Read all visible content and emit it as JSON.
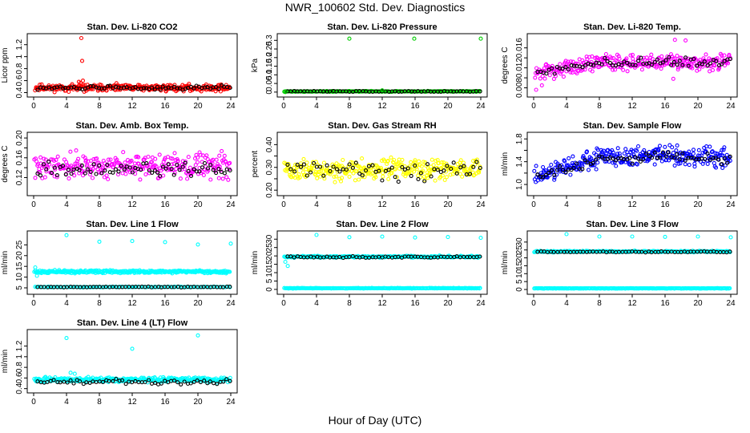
{
  "figure": {
    "title": "NWR_100602  Std. Dev. Diagnostics",
    "xlabel": "Hour of Day (UTC)"
  },
  "chart_data": [
    {
      "type": "scatter",
      "title": "Stan. Dev. Li-820 CO2",
      "ylabel": "Licor ppm",
      "xlim": [
        0,
        24
      ],
      "ylim": [
        0.38,
        1.33
      ],
      "yticks": [
        0.4,
        0.6,
        0.8,
        1.0,
        1.2
      ],
      "xticks": [
        0,
        4,
        8,
        12,
        16,
        20,
        24
      ],
      "series": [
        {
          "color": "#ff0000",
          "gen": {
            "n": 300,
            "base": 0.48,
            "amp": 0.04,
            "noise": 0.05,
            "start": 0.2,
            "end": 23.9,
            "seed": 11
          }
        },
        {
          "color": "#000000",
          "gen": {
            "n": 70,
            "base": 0.48,
            "amp": 0.02,
            "noise": 0.03,
            "start": 0.5,
            "end": 23.9,
            "seed": 12
          }
        },
        {
          "color": "#ff0000",
          "points": [
            [
              5.8,
              1.31
            ],
            [
              5.9,
              0.93
            ],
            [
              5.7,
              0.56
            ],
            [
              5.5,
              0.58
            ],
            [
              6.0,
              0.6
            ]
          ]
        }
      ]
    },
    {
      "type": "scatter",
      "title": "Stan. Dev. Li-820 Pressure",
      "ylabel": "kPa",
      "xlim": [
        0,
        24
      ],
      "ylim": [
        -0.01,
        0.32
      ],
      "yticks": [
        0.0,
        0.05,
        0.1,
        0.15,
        0.2,
        0.25,
        0.3
      ],
      "xticks": [
        0,
        4,
        8,
        12,
        16,
        20,
        24
      ],
      "series": [
        {
          "color": "#00cc00",
          "gen": {
            "n": 200,
            "base": 0.004,
            "amp": 0.0,
            "noise": 0.002,
            "start": 0.1,
            "end": 23.9,
            "seed": 21
          }
        },
        {
          "color": "#000000",
          "gen": {
            "n": 60,
            "base": 0.004,
            "amp": 0.0,
            "noise": 0.002,
            "start": 0.5,
            "end": 23.9,
            "seed": 22
          }
        },
        {
          "color": "#00cc00",
          "points": [
            [
              0.2,
              0.0
            ],
            [
              8.0,
              0.31
            ],
            [
              15.9,
              0.31
            ],
            [
              24.0,
              0.31
            ],
            [
              12.0,
              0.01
            ]
          ]
        }
      ]
    },
    {
      "type": "scatter",
      "title": "Stan. Dev. Li-820 Temp.",
      "ylabel": "degrees C",
      "xlim": [
        0,
        24
      ],
      "ylim": [
        0.0068,
        0.0182
      ],
      "yticks": [
        0.008,
        0.01,
        0.012,
        0.014,
        0.016
      ],
      "ytick_labels": [
        "0.008",
        "",
        "0.012",
        "",
        "0.016"
      ],
      "xticks": [
        0,
        4,
        8,
        12,
        16,
        20,
        24
      ],
      "series": [
        {
          "color": "#ff00ff",
          "gen": {
            "n": 300,
            "base": 0.0125,
            "amp": 0.0,
            "noise": 0.0014,
            "start": 0.2,
            "end": 23.9,
            "seed": 31,
            "trend": [
              0.0108,
              0.0132
            ]
          }
        },
        {
          "color": "#000000",
          "gen": {
            "n": 70,
            "base": 0.0125,
            "amp": 0.0,
            "noise": 0.0009,
            "start": 0.5,
            "end": 23.9,
            "seed": 32,
            "trend": [
              0.0108,
              0.0132
            ]
          }
        },
        {
          "color": "#ff00ff",
          "points": [
            [
              0.3,
              0.0076
            ],
            [
              17.2,
              0.0176
            ],
            [
              18.5,
              0.0175
            ],
            [
              17.0,
              0.0098
            ],
            [
              1.0,
              0.0085
            ]
          ]
        }
      ]
    },
    {
      "type": "scatter",
      "title": "Stan. Dev. Amb. Box Temp.",
      "ylabel": "degrees C",
      "xlim": [
        0,
        24
      ],
      "ylim": [
        0.09,
        0.205
      ],
      "yticks": [
        0.12,
        0.14,
        0.16,
        0.18,
        0.2
      ],
      "ytick_labels": [
        "0.12",
        "",
        "0.16",
        "",
        "0.20"
      ],
      "xticks": [
        0,
        4,
        8,
        12,
        16,
        20,
        24
      ],
      "series": [
        {
          "color": "#ff00ff",
          "gen": {
            "n": 300,
            "base": 0.143,
            "amp": 0.0,
            "noise": 0.022,
            "start": 0.1,
            "end": 23.9,
            "seed": 41
          }
        },
        {
          "color": "#000000",
          "gen": {
            "n": 70,
            "base": 0.136,
            "amp": 0.0,
            "noise": 0.012,
            "start": 0.5,
            "end": 23.9,
            "seed": 42
          }
        }
      ]
    },
    {
      "type": "scatter",
      "title": "Stan. Dev. Gas Stream RH",
      "ylabel": "percent",
      "xlim": [
        0,
        24
      ],
      "ylim": [
        0.19,
        0.44
      ],
      "yticks": [
        0.2,
        0.25,
        0.3,
        0.35,
        0.4
      ],
      "ytick_labels": [
        "0.20",
        "",
        "0.30",
        "",
        "0.40"
      ],
      "xticks": [
        0,
        4,
        8,
        12,
        16,
        20,
        24
      ],
      "series": [
        {
          "color": "#ffff00",
          "gen": {
            "n": 320,
            "base": 0.29,
            "amp": 0.0,
            "noise": 0.04,
            "start": 0.1,
            "end": 23.9,
            "seed": 51
          }
        },
        {
          "color": "#000000",
          "gen": {
            "n": 60,
            "base": 0.29,
            "amp": 0.0,
            "noise": 0.04,
            "start": 0.5,
            "end": 23.9,
            "seed": 52
          }
        }
      ]
    },
    {
      "type": "scatter",
      "title": "Stan. Dev. Sample Flow",
      "ylabel": "ml/min",
      "xlim": [
        0,
        24
      ],
      "ylim": [
        0.86,
        1.86
      ],
      "yticks": [
        1.0,
        1.2,
        1.4,
        1.6,
        1.8
      ],
      "ytick_labels": [
        "1.0",
        "",
        "1.4",
        "",
        "1.8"
      ],
      "xticks": [
        0,
        4,
        8,
        12,
        16,
        20,
        24
      ],
      "series": [
        {
          "color": "#0000ff",
          "gen": {
            "n": 320,
            "base": 1.3,
            "amp": 0.0,
            "noise": 0.15,
            "start": 0.1,
            "end": 23.9,
            "seed": 61,
            "trend": [
              1.1,
              1.48
            ],
            "peak": 16
          }
        },
        {
          "color": "#000000",
          "gen": {
            "n": 70,
            "base": 1.3,
            "amp": 0.0,
            "noise": 0.08,
            "start": 0.5,
            "end": 23.9,
            "seed": 62,
            "trend": [
              1.1,
              1.45
            ],
            "peak": 16
          }
        }
      ]
    },
    {
      "type": "scatter",
      "title": "Stan. Dev. Line 1 Flow",
      "ylabel": "ml/min",
      "xlim": [
        0,
        24
      ],
      "ylim": [
        3.5,
        30
      ],
      "yticks": [
        5,
        10,
        15,
        20,
        25
      ],
      "xticks": [
        0,
        4,
        8,
        12,
        16,
        20,
        24
      ],
      "series": [
        {
          "color": "#00ffff",
          "gen": {
            "n": 320,
            "base": 12.5,
            "amp": 0.0,
            "noise": 0.6,
            "start": 0.1,
            "end": 23.9,
            "seed": 71
          }
        },
        {
          "color": "#00ffff",
          "gen": {
            "n": 120,
            "base": 5.4,
            "amp": 0.0,
            "noise": 0.15,
            "start": 0.2,
            "end": 23.9,
            "seed": 73
          }
        },
        {
          "color": "#000000",
          "gen": {
            "n": 60,
            "base": 5.4,
            "amp": 0.0,
            "noise": 0.15,
            "start": 0.5,
            "end": 23.9,
            "seed": 72
          }
        },
        {
          "color": "#00ffff",
          "points": [
            [
              0.2,
              14.5
            ],
            [
              0.4,
              10.6
            ],
            [
              4.0,
              29.5
            ],
            [
              8.0,
              26.5
            ],
            [
              12.0,
              26.8
            ],
            [
              16.0,
              26.3
            ],
            [
              20.0,
              25.2
            ],
            [
              24.0,
              25.6
            ]
          ]
        }
      ]
    },
    {
      "type": "scatter",
      "title": "Stan. Dev. Line 2 Flow",
      "ylabel": "ml/min",
      "xlim": [
        0,
        24
      ],
      "ylim": [
        -1,
        33
      ],
      "yticks": [
        0,
        5,
        10,
        15,
        20,
        25,
        30
      ],
      "xticks": [
        0,
        4,
        8,
        12,
        16,
        20,
        24
      ],
      "series": [
        {
          "color": "#00ffff",
          "gen": {
            "n": 300,
            "base": 19.5,
            "amp": 0.0,
            "noise": 0.5,
            "start": 0.1,
            "end": 23.9,
            "seed": 81
          }
        },
        {
          "color": "#00ffff",
          "gen": {
            "n": 250,
            "base": 0.7,
            "amp": 0.0,
            "noise": 0.15,
            "start": 0.1,
            "end": 23.9,
            "seed": 83
          }
        },
        {
          "color": "#000000",
          "gen": {
            "n": 60,
            "base": 19.3,
            "amp": 0.0,
            "noise": 0.4,
            "start": 0.5,
            "end": 23.9,
            "seed": 82
          }
        },
        {
          "color": "#00ffff",
          "points": [
            [
              0.2,
              16.5
            ],
            [
              0.5,
              14.0
            ],
            [
              4.0,
              32.5
            ],
            [
              8.0,
              31.2
            ],
            [
              12.0,
              31.5
            ],
            [
              16.0,
              31.0
            ],
            [
              20.0,
              31.3
            ],
            [
              24.0,
              30.8
            ]
          ]
        }
      ]
    },
    {
      "type": "scatter",
      "title": "Stan. Dev. Line 3 Flow",
      "ylabel": "ml/min",
      "xlim": [
        0,
        24
      ],
      "ylim": [
        -1,
        35
      ],
      "yticks": [
        0,
        5,
        10,
        15,
        20,
        25,
        30
      ],
      "xticks": [
        0,
        4,
        8,
        12,
        16,
        20,
        24
      ],
      "series": [
        {
          "color": "#00ffff",
          "gen": {
            "n": 300,
            "base": 24.0,
            "amp": 0.0,
            "noise": 0.4,
            "start": 0.1,
            "end": 23.9,
            "seed": 91
          }
        },
        {
          "color": "#00ffff",
          "gen": {
            "n": 250,
            "base": 0.7,
            "amp": 0.0,
            "noise": 0.12,
            "start": 0.1,
            "end": 23.9,
            "seed": 93
          }
        },
        {
          "color": "#000000",
          "gen": {
            "n": 60,
            "base": 23.8,
            "amp": 0.0,
            "noise": 0.3,
            "start": 0.5,
            "end": 23.9,
            "seed": 92
          }
        },
        {
          "color": "#00ffff",
          "points": [
            [
              4.0,
              35.0
            ],
            [
              8.0,
              33.5
            ],
            [
              12.0,
              33.5
            ],
            [
              16.0,
              33.3
            ],
            [
              20.0,
              33.5
            ],
            [
              24.0,
              33.0
            ]
          ]
        }
      ]
    },
    {
      "type": "scatter",
      "title": "Stan. Dev. Line 4 (LT) Flow",
      "ylabel": "ml/min",
      "xlim": [
        0,
        24
      ],
      "ylim": [
        0.38,
        1.45
      ],
      "yticks": [
        0.4,
        0.6,
        0.8,
        1.0,
        1.2
      ],
      "xticks": [
        0,
        4,
        8,
        12,
        16,
        20,
        24
      ],
      "series": [
        {
          "color": "#00ffff",
          "gen": {
            "n": 300,
            "base": 0.57,
            "amp": 0.0,
            "noise": 0.04,
            "start": 0.1,
            "end": 23.9,
            "seed": 101
          }
        },
        {
          "color": "#000000",
          "gen": {
            "n": 60,
            "base": 0.53,
            "amp": 0.0,
            "noise": 0.04,
            "start": 0.5,
            "end": 23.9,
            "seed": 102
          }
        },
        {
          "color": "#00ffff",
          "points": [
            [
              4.0,
              1.35
            ],
            [
              12.0,
              1.15
            ],
            [
              20.0,
              1.4
            ],
            [
              4.5,
              0.7
            ],
            [
              5.0,
              0.68
            ]
          ]
        }
      ]
    }
  ]
}
